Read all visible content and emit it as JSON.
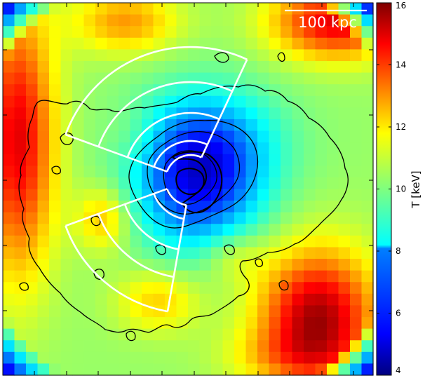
{
  "chart_data": {
    "type": "heatmap",
    "title": "",
    "colorbar": {
      "label": "T [keV]",
      "range": [
        4,
        16
      ],
      "ticks": [
        4,
        6,
        8,
        10,
        12,
        14,
        16
      ],
      "tick_labels": [
        "4",
        "6",
        "8",
        "10",
        "12",
        "14",
        "16"
      ],
      "colormap": "jet"
    },
    "scale_bar": {
      "label": "100 kpc"
    },
    "colormap_stops": [
      "#00007f",
      "#0000ff",
      "#007fff",
      "#00ffff",
      "#7fff7f",
      "#ffff00",
      "#ff7f00",
      "#ff0000",
      "#7f0000"
    ],
    "temperature_field": {
      "background_keV": 10.3,
      "components": [
        {
          "cx": 0.53,
          "cy": 0.48,
          "sx": 0.12,
          "sy": 0.13,
          "amp": -4.6
        },
        {
          "cx": 0.56,
          "cy": 0.36,
          "sx": 0.14,
          "sy": 0.1,
          "amp": -1.6
        },
        {
          "cx": 0.36,
          "cy": 0.36,
          "sx": 0.06,
          "sy": 0.06,
          "amp": 0.6
        },
        {
          "cx": 0.04,
          "cy": 0.37,
          "sx": 0.07,
          "sy": 0.25,
          "amp": 4.5
        },
        {
          "cx": 0.85,
          "cy": 0.85,
          "sx": 0.11,
          "sy": 0.13,
          "amp": 5.3
        },
        {
          "cx": 0.9,
          "cy": 0.05,
          "sx": 0.12,
          "sy": 0.07,
          "amp": 4.5
        },
        {
          "cx": 0.33,
          "cy": 0.05,
          "sx": 0.1,
          "sy": 0.06,
          "amp": 2.4
        },
        {
          "cx": 0.27,
          "cy": 0.58,
          "sx": 0.05,
          "sy": 0.06,
          "amp": 2.0
        },
        {
          "cx": 0.42,
          "cy": 0.8,
          "sx": 0.08,
          "sy": 0.06,
          "amp": 1.8
        },
        {
          "cx": 0.75,
          "cy": 0.95,
          "sx": 0.12,
          "sy": 0.05,
          "amp": 1.0
        },
        {
          "cx": 0.62,
          "cy": 0.68,
          "sx": 0.06,
          "sy": 0.05,
          "amp": 1.2
        }
      ],
      "corner_minimum_keV": 4.8,
      "grid": 32
    },
    "grid": false
  }
}
